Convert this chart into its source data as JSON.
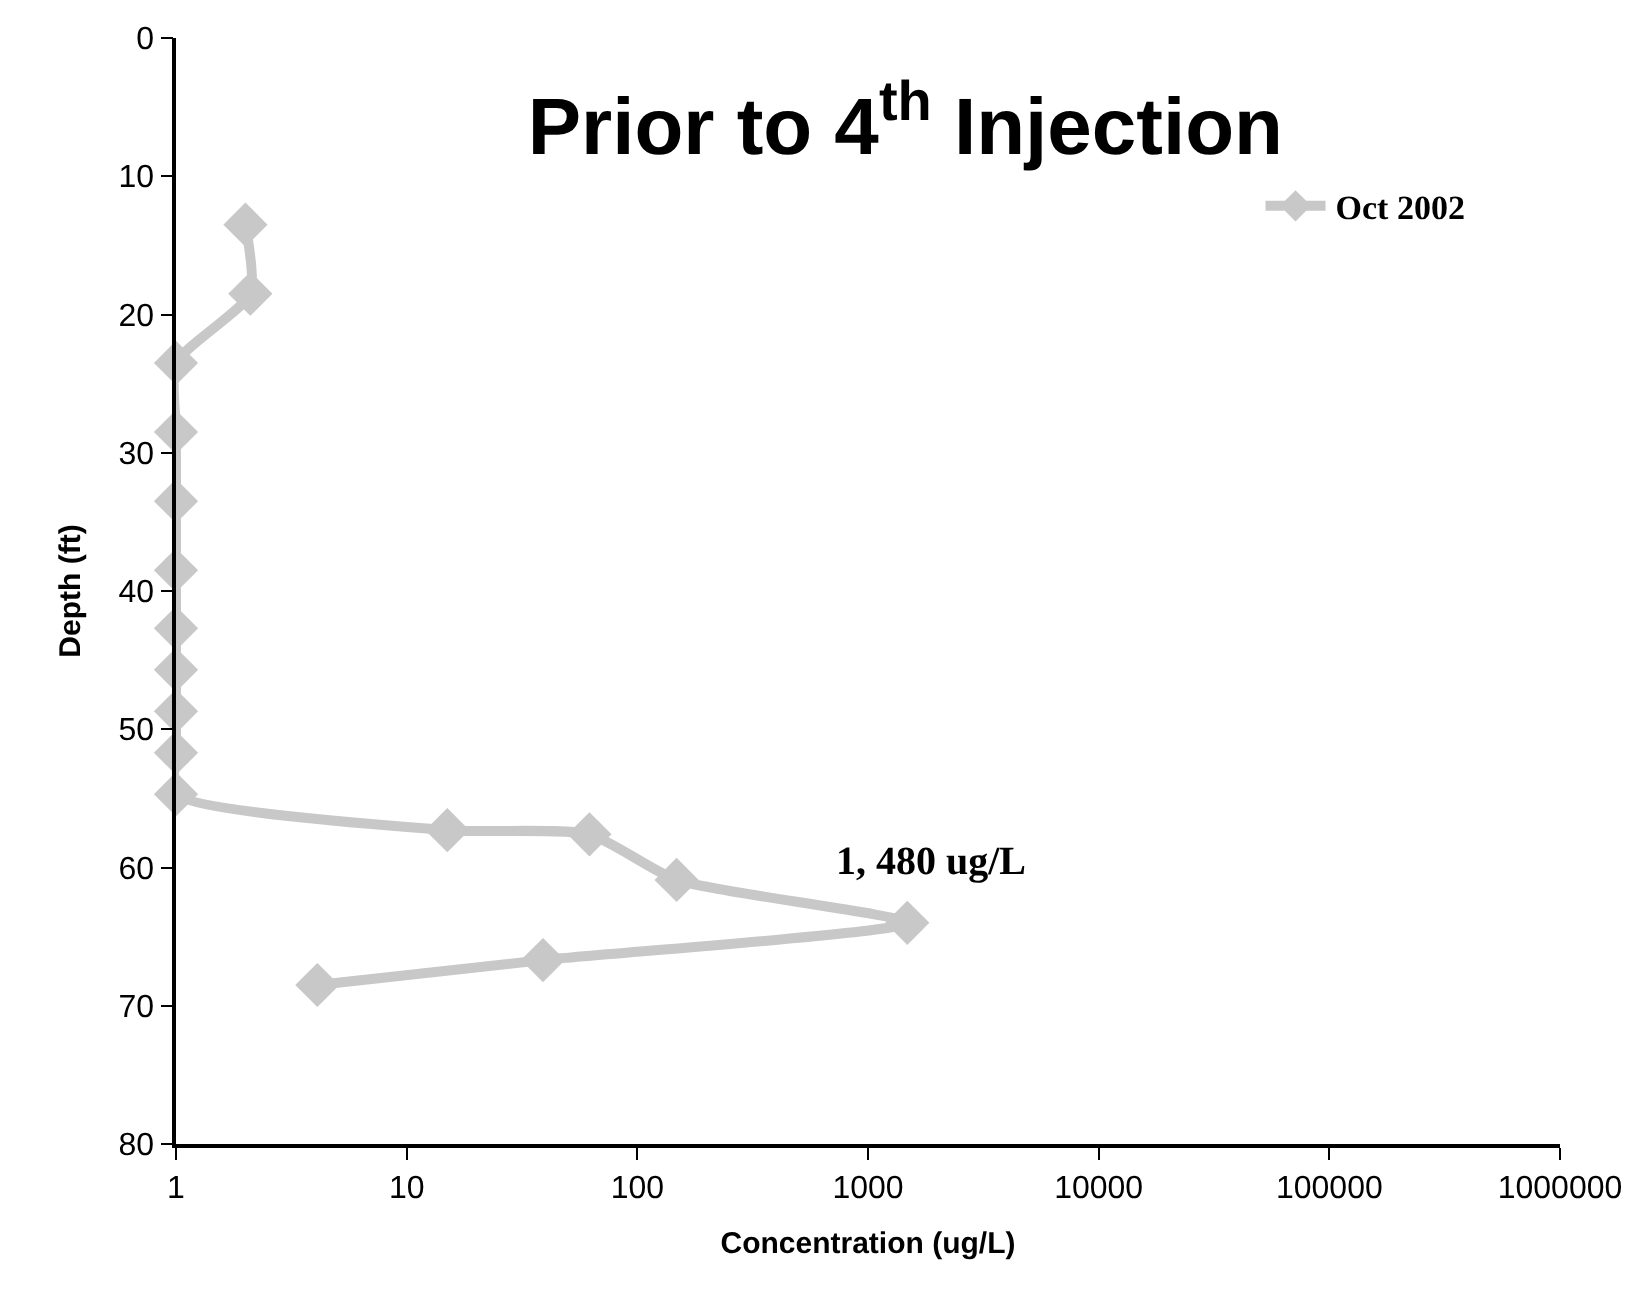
{
  "chart_data": {
    "type": "line",
    "title": "Prior to 4$^{th}$ Injection",
    "xlabel": "Concentration (ug/L)",
    "ylabel": "Depth (ft)",
    "series": [
      {
        "name": "Oct 2002",
        "color": "#c8c8c8",
        "x": [
          2.0,
          2.1,
          1,
          1,
          1,
          1,
          1,
          1,
          1,
          1,
          1,
          15,
          62,
          148,
          1480,
          39,
          4.1
        ],
        "values": [
          13.5,
          18.5,
          23.5,
          28.5,
          33.5,
          38.5,
          42.7,
          45.7,
          48.7,
          51.7,
          54.7,
          57.3,
          57.6,
          60.9,
          64,
          66.7,
          68.5
        ]
      }
    ],
    "annotations": [
      {
        "text": "1, 480 ug/L",
        "x": 1480,
        "y": 64
      }
    ],
    "xlim": [
      1,
      1000000
    ],
    "xticks": [
      1,
      10,
      100,
      1000,
      10000,
      100000,
      1000000
    ],
    "ylim": [
      80,
      0
    ],
    "yticks": [
      0,
      10,
      20,
      30,
      40,
      50,
      60,
      70,
      80
    ],
    "log": "x",
    "legend": "top right",
    "marker": "diamond",
    "line_style": "solid"
  }
}
